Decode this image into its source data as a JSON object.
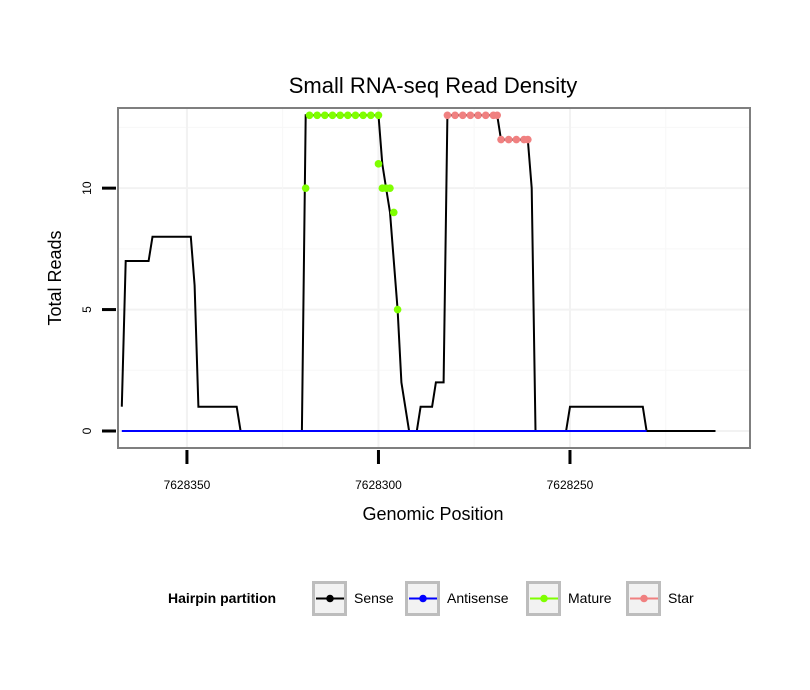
{
  "chart_data": {
    "type": "line",
    "title": "Small RNA-seq Read Density",
    "xlabel": "Genomic Position",
    "ylabel": "Total Reads",
    "xlim": [
      7628368,
      7628203
    ],
    "ylim": [
      -0.7,
      13.3
    ],
    "x_reversed": true,
    "x_ticks": [
      7628350,
      7628300,
      7628250
    ],
    "x_tick_labels": [
      "7628350",
      "7628300",
      "7628250"
    ],
    "y_ticks": [
      0,
      5,
      10
    ],
    "y_tick_labels": [
      "0",
      "5",
      "10"
    ],
    "grid": true,
    "legend_position": "bottom",
    "legend": {
      "title": "Hairpin partition",
      "entries": [
        {
          "label": "Sense",
          "color": "#000000"
        },
        {
          "label": "Antisense",
          "color": "#0000ff"
        },
        {
          "label": "Mature",
          "color": "#7fff00"
        },
        {
          "label": "Star",
          "color": "#f08080"
        }
      ]
    },
    "series": [
      {
        "name": "Sense",
        "color": "#000000",
        "style": "line",
        "points": [
          [
            7628367,
            1
          ],
          [
            7628366,
            7
          ],
          [
            7628360,
            7
          ],
          [
            7628359,
            8
          ],
          [
            7628349,
            8
          ],
          [
            7628348,
            6
          ],
          [
            7628347,
            1
          ],
          [
            7628337,
            1
          ],
          [
            7628336,
            0
          ],
          [
            7628320,
            0
          ],
          [
            7628319,
            13
          ],
          [
            7628300,
            13
          ],
          [
            7628299,
            11
          ],
          [
            7628298,
            10
          ],
          [
            7628297,
            9
          ],
          [
            7628295,
            5
          ],
          [
            7628294,
            2
          ],
          [
            7628292,
            0
          ],
          [
            7628290,
            0
          ],
          [
            7628289,
            1
          ],
          [
            7628286,
            1
          ],
          [
            7628285,
            2
          ],
          [
            7628283,
            2
          ],
          [
            7628282,
            13
          ],
          [
            7628269,
            13
          ],
          [
            7628268,
            12
          ],
          [
            7628261,
            12
          ],
          [
            7628260,
            10
          ],
          [
            7628259,
            0
          ],
          [
            7628251,
            0
          ],
          [
            7628250,
            1
          ],
          [
            7628231,
            1
          ],
          [
            7628230,
            0
          ],
          [
            7628212,
            0
          ]
        ]
      },
      {
        "name": "Antisense",
        "color": "#0000ff",
        "style": "line",
        "points": [
          [
            7628367,
            0
          ],
          [
            7628230,
            0
          ]
        ]
      },
      {
        "name": "Mature",
        "color": "#7fff00",
        "style": "points",
        "points": [
          [
            7628319,
            10
          ],
          [
            7628318,
            13
          ],
          [
            7628316,
            13
          ],
          [
            7628314,
            13
          ],
          [
            7628312,
            13
          ],
          [
            7628310,
            13
          ],
          [
            7628308,
            13
          ],
          [
            7628306,
            13
          ],
          [
            7628304,
            13
          ],
          [
            7628302,
            13
          ],
          [
            7628300,
            13
          ],
          [
            7628300,
            11
          ],
          [
            7628299,
            10
          ],
          [
            7628298,
            10
          ],
          [
            7628297,
            10
          ],
          [
            7628296,
            9
          ],
          [
            7628295,
            5
          ]
        ]
      },
      {
        "name": "Star",
        "color": "#f08080",
        "style": "points",
        "points": [
          [
            7628282,
            13
          ],
          [
            7628280,
            13
          ],
          [
            7628278,
            13
          ],
          [
            7628276,
            13
          ],
          [
            7628274,
            13
          ],
          [
            7628272,
            13
          ],
          [
            7628270,
            13
          ],
          [
            7628269,
            13
          ],
          [
            7628268,
            12
          ],
          [
            7628266,
            12
          ],
          [
            7628264,
            12
          ],
          [
            7628262,
            12
          ],
          [
            7628261,
            12
          ]
        ]
      }
    ]
  }
}
